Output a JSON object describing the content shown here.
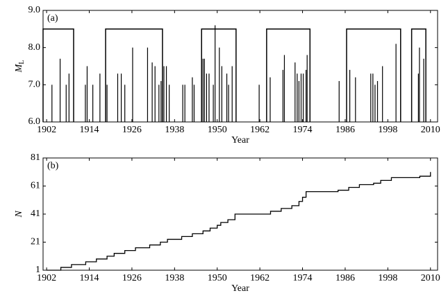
{
  "chart_data": [
    {
      "type": "stem",
      "panel_label": "(a)",
      "x_label": "Year",
      "y_label": "M",
      "y_label_subscript": "L",
      "color": "#000000",
      "baseline": 6.0,
      "x": [
        1903.5,
        1905.8,
        1907.5,
        1908.3,
        1912.9,
        1913.4,
        1915.0,
        1917.0,
        1919.0,
        1922.0,
        1923.0,
        1924.0,
        1926.2,
        1930.4,
        1931.7,
        1932.5,
        1933.6,
        1934.2,
        1935.0,
        1935.7,
        1936.5,
        1940.3,
        1940.9,
        1943.0,
        1943.5,
        1946.0,
        1946.4,
        1947.0,
        1947.7,
        1948.9,
        1949.4,
        1950.6,
        1951.3,
        1952.7,
        1953.2,
        1954.2,
        1961.8,
        1964.9,
        1968.5,
        1968.9,
        1971.9,
        1972.5,
        1973.0,
        1973.6,
        1974.2,
        1975.0,
        1975.3,
        1984.3,
        1987.3,
        1988.9,
        1993.2,
        1993.8,
        1994.4,
        1995.1,
        1996.5,
        2000.3,
        2006.6,
        2006.9,
        2008.1
      ],
      "values": [
        7.0,
        7.7,
        7.0,
        7.3,
        7.0,
        7.5,
        7.0,
        7.3,
        7.0,
        7.3,
        7.3,
        7.0,
        8.0,
        8.0,
        7.6,
        7.5,
        7.0,
        7.1,
        7.5,
        7.5,
        7.0,
        7.0,
        7.0,
        7.2,
        7.0,
        7.7,
        7.7,
        7.3,
        7.3,
        7.0,
        8.6,
        8.0,
        7.5,
        7.3,
        7.0,
        7.5,
        7.0,
        7.2,
        7.4,
        7.8,
        7.6,
        7.3,
        7.1,
        7.3,
        7.3,
        7.4,
        7.8,
        7.1,
        7.4,
        7.2,
        7.3,
        7.3,
        7.0,
        7.1,
        7.5,
        8.1,
        7.3,
        8.0,
        7.7
      ],
      "periods": [
        [
          1901.0,
          1909.6
        ],
        [
          1918.6,
          1934.6
        ],
        [
          1945.6,
          1955.3
        ],
        [
          1963.9,
          1976.1
        ],
        [
          1986.4,
          2001.6
        ],
        [
          2004.7,
          2008.7
        ]
      ],
      "period_level": 8.5,
      "xlim": [
        1901,
        2012
      ],
      "xticks": [
        1902,
        1914,
        1926,
        1938,
        1950,
        1962,
        1974,
        1986,
        1998,
        2010
      ],
      "ylim": [
        6.0,
        9.0
      ],
      "yticks": [
        {
          "value": 6,
          "label": "6.0"
        },
        {
          "value": 7,
          "label": "7.0"
        },
        {
          "value": 8,
          "label": "8.0"
        },
        {
          "value": 9,
          "label": "9.0"
        }
      ]
    },
    {
      "type": "line",
      "step": true,
      "panel_label": "(b)",
      "x_label": "Year",
      "y_label": "N",
      "color": "#000000",
      "x": [
        1902,
        1906,
        1909,
        1913,
        1916,
        1919,
        1921,
        1924,
        1927,
        1931,
        1934,
        1936,
        1940,
        1943,
        1946,
        1948,
        1950,
        1951,
        1953,
        1955,
        1962,
        1965,
        1968,
        1971,
        1973,
        1974,
        1975,
        1984,
        1987,
        1990,
        1994,
        1996,
        1999,
        2007,
        2010
      ],
      "values": [
        1,
        3,
        5,
        7,
        9,
        11,
        13,
        15,
        17,
        19,
        21,
        23,
        25,
        27,
        29,
        31,
        33,
        35,
        37,
        41,
        41,
        43,
        45,
        47,
        50,
        53,
        57,
        58,
        60,
        62,
        63,
        65,
        67,
        68,
        71
      ],
      "xlim": [
        1901,
        2012
      ],
      "xticks": [
        1902,
        1914,
        1926,
        1938,
        1950,
        1962,
        1974,
        1986,
        1998,
        2010
      ],
      "ylim": [
        1,
        81
      ],
      "yticks": [
        1,
        21,
        41,
        61,
        81
      ]
    }
  ]
}
